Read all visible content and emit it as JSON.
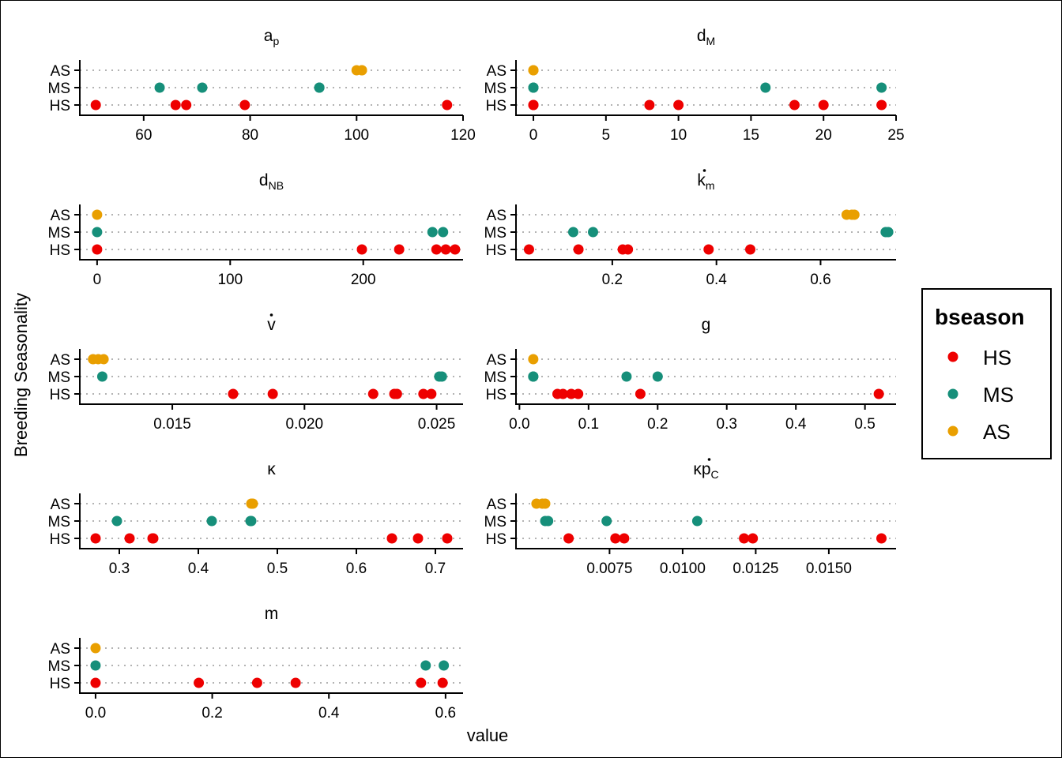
{
  "colors": {
    "HS": "#ee0000",
    "MS": "#168f7a",
    "AS": "#e99f00"
  },
  "chart_data": {
    "type": "scatter",
    "xlabel": "value",
    "ylabel": "Breeding Seasonality",
    "categories": [
      "HS",
      "MS",
      "AS"
    ],
    "legend": {
      "title": "bseason",
      "items": [
        "HS",
        "MS",
        "AS"
      ],
      "placement": "right"
    },
    "grid": "dotted horizontal lines per category",
    "panels": [
      {
        "title": {
          "base": "a",
          "sub": "p",
          "overdot": false
        },
        "xlim": [
          48,
          120
        ],
        "ticks": [
          60,
          80,
          100,
          120
        ],
        "tick_labels": [
          "60",
          "80",
          "100",
          "120"
        ],
        "points": {
          "HS": [
            51,
            66,
            68,
            79,
            117
          ],
          "MS": [
            63,
            71,
            93,
            93
          ],
          "AS": [
            100,
            101,
            101
          ]
        }
      },
      {
        "title": {
          "base": "d",
          "sub": "M",
          "overdot": false
        },
        "xlim": [
          -1.2,
          25
        ],
        "ticks": [
          0,
          5,
          10,
          15,
          20,
          25
        ],
        "tick_labels": [
          "0",
          "5",
          "10",
          "15",
          "20",
          "25"
        ],
        "points": {
          "HS": [
            0,
            0,
            8,
            10,
            18,
            20,
            24
          ],
          "MS": [
            0,
            0,
            16,
            24
          ],
          "AS": [
            0,
            0
          ]
        }
      },
      {
        "title": {
          "base": "d",
          "sub": "NB",
          "overdot": false
        },
        "xlim": [
          -13,
          275
        ],
        "ticks": [
          0,
          100,
          200
        ],
        "tick_labels": [
          "0",
          "100",
          "200"
        ],
        "points": {
          "HS": [
            0,
            199,
            227,
            255,
            262,
            269
          ],
          "MS": [
            0,
            252,
            260
          ],
          "AS": [
            0
          ]
        }
      },
      {
        "title": {
          "base": "k",
          "sub": "m",
          "overdot": true
        },
        "xlim": [
          0.015,
          0.745
        ],
        "ticks": [
          0.2,
          0.4,
          0.6
        ],
        "tick_labels": [
          "0.2",
          "0.4",
          "0.6"
        ],
        "points": {
          "HS": [
            0.04,
            0.135,
            0.22,
            0.23,
            0.385,
            0.465
          ],
          "MS": [
            0.125,
            0.163,
            0.725,
            0.73
          ],
          "AS": [
            0.65,
            0.66,
            0.665
          ]
        }
      },
      {
        "title": {
          "base": "v",
          "sub": "",
          "overdot": true
        },
        "xlim": [
          0.0115,
          0.026
        ],
        "ticks": [
          0.015,
          0.02,
          0.025
        ],
        "tick_labels": [
          "0.015",
          "0.020",
          "0.025"
        ],
        "points": {
          "HS": [
            0.0173,
            0.0188,
            0.0226,
            0.0234,
            0.0235,
            0.0245,
            0.0248
          ],
          "MS": [
            0.01235,
            0.0251,
            0.0252
          ],
          "AS": [
            0.012,
            0.0122,
            0.0124
          ]
        }
      },
      {
        "title": {
          "base": "g",
          "sub": "",
          "overdot": false
        },
        "xlim": [
          -0.005,
          0.545
        ],
        "ticks": [
          0,
          0.1,
          0.2,
          0.3,
          0.4,
          0.5
        ],
        "tick_labels": [
          "0.0",
          "0.1",
          "0.2",
          "0.3",
          "0.4",
          "0.5"
        ],
        "points": {
          "HS": [
            0.055,
            0.063,
            0.075,
            0.085,
            0.175,
            0.52
          ],
          "MS": [
            0.02,
            0.02,
            0.155,
            0.2
          ],
          "AS": [
            0.02
          ]
        }
      },
      {
        "title": {
          "base": "κ",
          "sub": "",
          "overdot": false
        },
        "xlim": [
          0.25,
          0.735
        ],
        "ticks": [
          0.3,
          0.4,
          0.5,
          0.6,
          0.7
        ],
        "tick_labels": [
          "0.3",
          "0.4",
          "0.5",
          "0.6",
          "0.7"
        ],
        "points": {
          "HS": [
            0.27,
            0.313,
            0.342,
            0.343,
            0.645,
            0.678,
            0.715
          ],
          "MS": [
            0.297,
            0.417,
            0.466,
            0.467
          ],
          "AS": [
            0.467,
            0.469
          ]
        }
      },
      {
        "title": {
          "base": "κp",
          "sub": "C",
          "overdot": true
        },
        "xlim": [
          0.0043,
          0.0173
        ],
        "ticks": [
          0.0075,
          0.01,
          0.0125,
          0.015
        ],
        "tick_labels": [
          "0.0075",
          "0.0100",
          "0.0125",
          "0.0150"
        ],
        "points": {
          "HS": [
            0.0061,
            0.0077,
            0.008,
            0.0121,
            0.0124,
            0.0168
          ],
          "MS": [
            0.0053,
            0.0054,
            0.0074,
            0.0105
          ],
          "AS": [
            0.005,
            0.0052,
            0.0053
          ]
        }
      },
      {
        "title": {
          "base": "m",
          "sub": "",
          "overdot": false
        },
        "xlim": [
          -0.027,
          0.63
        ],
        "ticks": [
          0,
          0.2,
          0.4,
          0.6
        ],
        "tick_labels": [
          "0.0",
          "0.2",
          "0.4",
          "0.6"
        ],
        "points": {
          "HS": [
            0,
            0.177,
            0.277,
            0.343,
            0.558,
            0.595
          ],
          "MS": [
            0,
            0.566,
            0.597
          ],
          "AS": [
            0
          ]
        }
      }
    ]
  }
}
